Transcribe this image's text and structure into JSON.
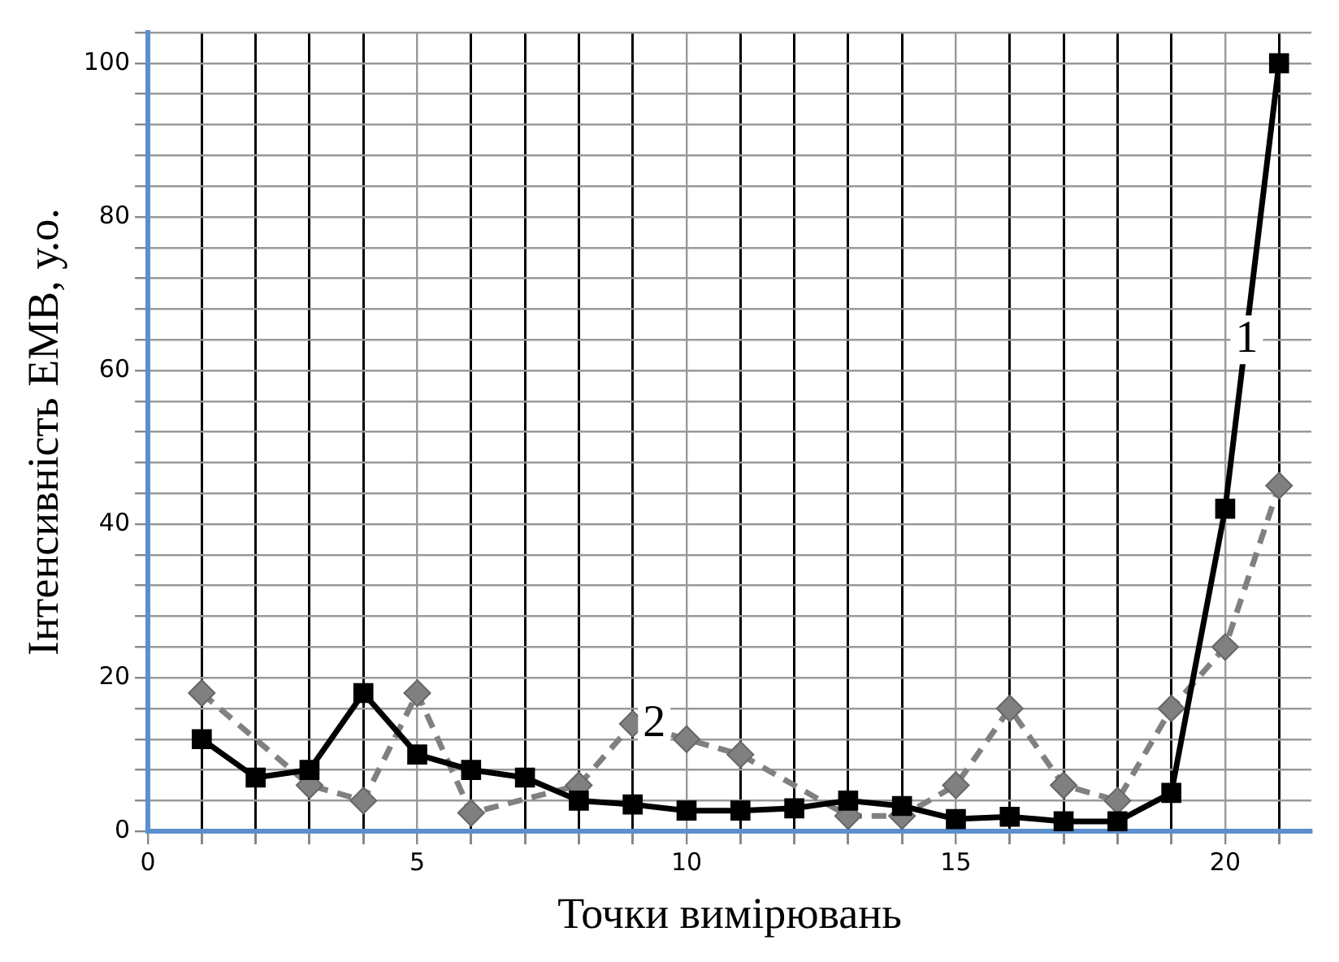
{
  "chart_data": {
    "type": "line",
    "xlabel": "Точки вимірювань",
    "ylabel": "Інтенсивність ЕМВ, у.о.",
    "x": [
      1,
      2,
      3,
      4,
      5,
      6,
      7,
      8,
      9,
      10,
      11,
      12,
      13,
      14,
      15,
      16,
      17,
      18,
      19,
      20,
      21
    ],
    "series": [
      {
        "color": "#000000",
        "marker": "square",
        "line_style": "solid",
        "values": [
          12,
          7,
          8,
          18,
          10,
          8,
          7,
          4,
          3.5,
          2.7,
          2.7,
          3,
          4,
          3.3,
          1.6,
          1.9,
          1.3,
          1.3,
          5,
          42,
          100
        ]
      },
      {
        "color": "#808080",
        "marker": "diamond",
        "line_style": "dashed",
        "values": [
          18,
          null,
          6,
          4,
          18,
          2.4,
          null,
          6,
          14,
          12,
          10,
          null,
          2,
          2,
          6,
          16,
          6,
          4,
          16,
          24,
          45
        ]
      }
    ],
    "xlim": [
      0,
      21.6
    ],
    "xticks": [
      0,
      {
        "value": 1,
        "label": null
      },
      {
        "value": 2,
        "label": null
      },
      {
        "value": 3,
        "label": null
      },
      {
        "value": 4,
        "label": null
      },
      5,
      {
        "value": 6,
        "label": null
      },
      {
        "value": 7,
        "label": null
      },
      {
        "value": 8,
        "label": null
      },
      {
        "value": 9,
        "label": null
      },
      10,
      {
        "value": 11,
        "label": null
      },
      {
        "value": 12,
        "label": null
      },
      {
        "value": 13,
        "label": null
      },
      {
        "value": 14,
        "label": null
      },
      15,
      {
        "value": 16,
        "label": null
      },
      {
        "value": 17,
        "label": null
      },
      {
        "value": 18,
        "label": null
      },
      {
        "value": 19,
        "label": null
      },
      20,
      {
        "value": 21,
        "label": null
      }
    ],
    "ylim": [
      0,
      104
    ],
    "yticks": [
      0,
      {
        "value": 4,
        "label": null
      },
      {
        "value": 8,
        "label": null
      },
      {
        "value": 12,
        "label": null
      },
      {
        "value": 16,
        "label": null
      },
      20,
      {
        "value": 24,
        "label": null
      },
      {
        "value": 28,
        "label": null
      },
      {
        "value": 32,
        "label": null
      },
      {
        "value": 36,
        "label": null
      },
      40,
      {
        "value": 44,
        "label": null
      },
      {
        "value": 48,
        "label": null
      },
      {
        "value": 52,
        "label": null
      },
      {
        "value": 56,
        "label": null
      },
      60,
      {
        "value": 64,
        "label": null
      },
      {
        "value": 68,
        "label": null
      },
      {
        "value": 72,
        "label": null
      },
      {
        "value": 76,
        "label": null
      },
      80,
      {
        "value": 84,
        "label": null
      },
      {
        "value": 88,
        "label": null
      },
      {
        "value": 92,
        "label": null
      },
      {
        "value": 96,
        "label": null
      },
      100,
      {
        "value": 104,
        "label": null
      }
    ],
    "grid": true,
    "legend": false,
    "annotations": [
      {
        "text": "1",
        "x": 20.4,
        "y": 64
      },
      {
        "text": "2",
        "x": 9.4,
        "y": 14
      }
    ]
  }
}
